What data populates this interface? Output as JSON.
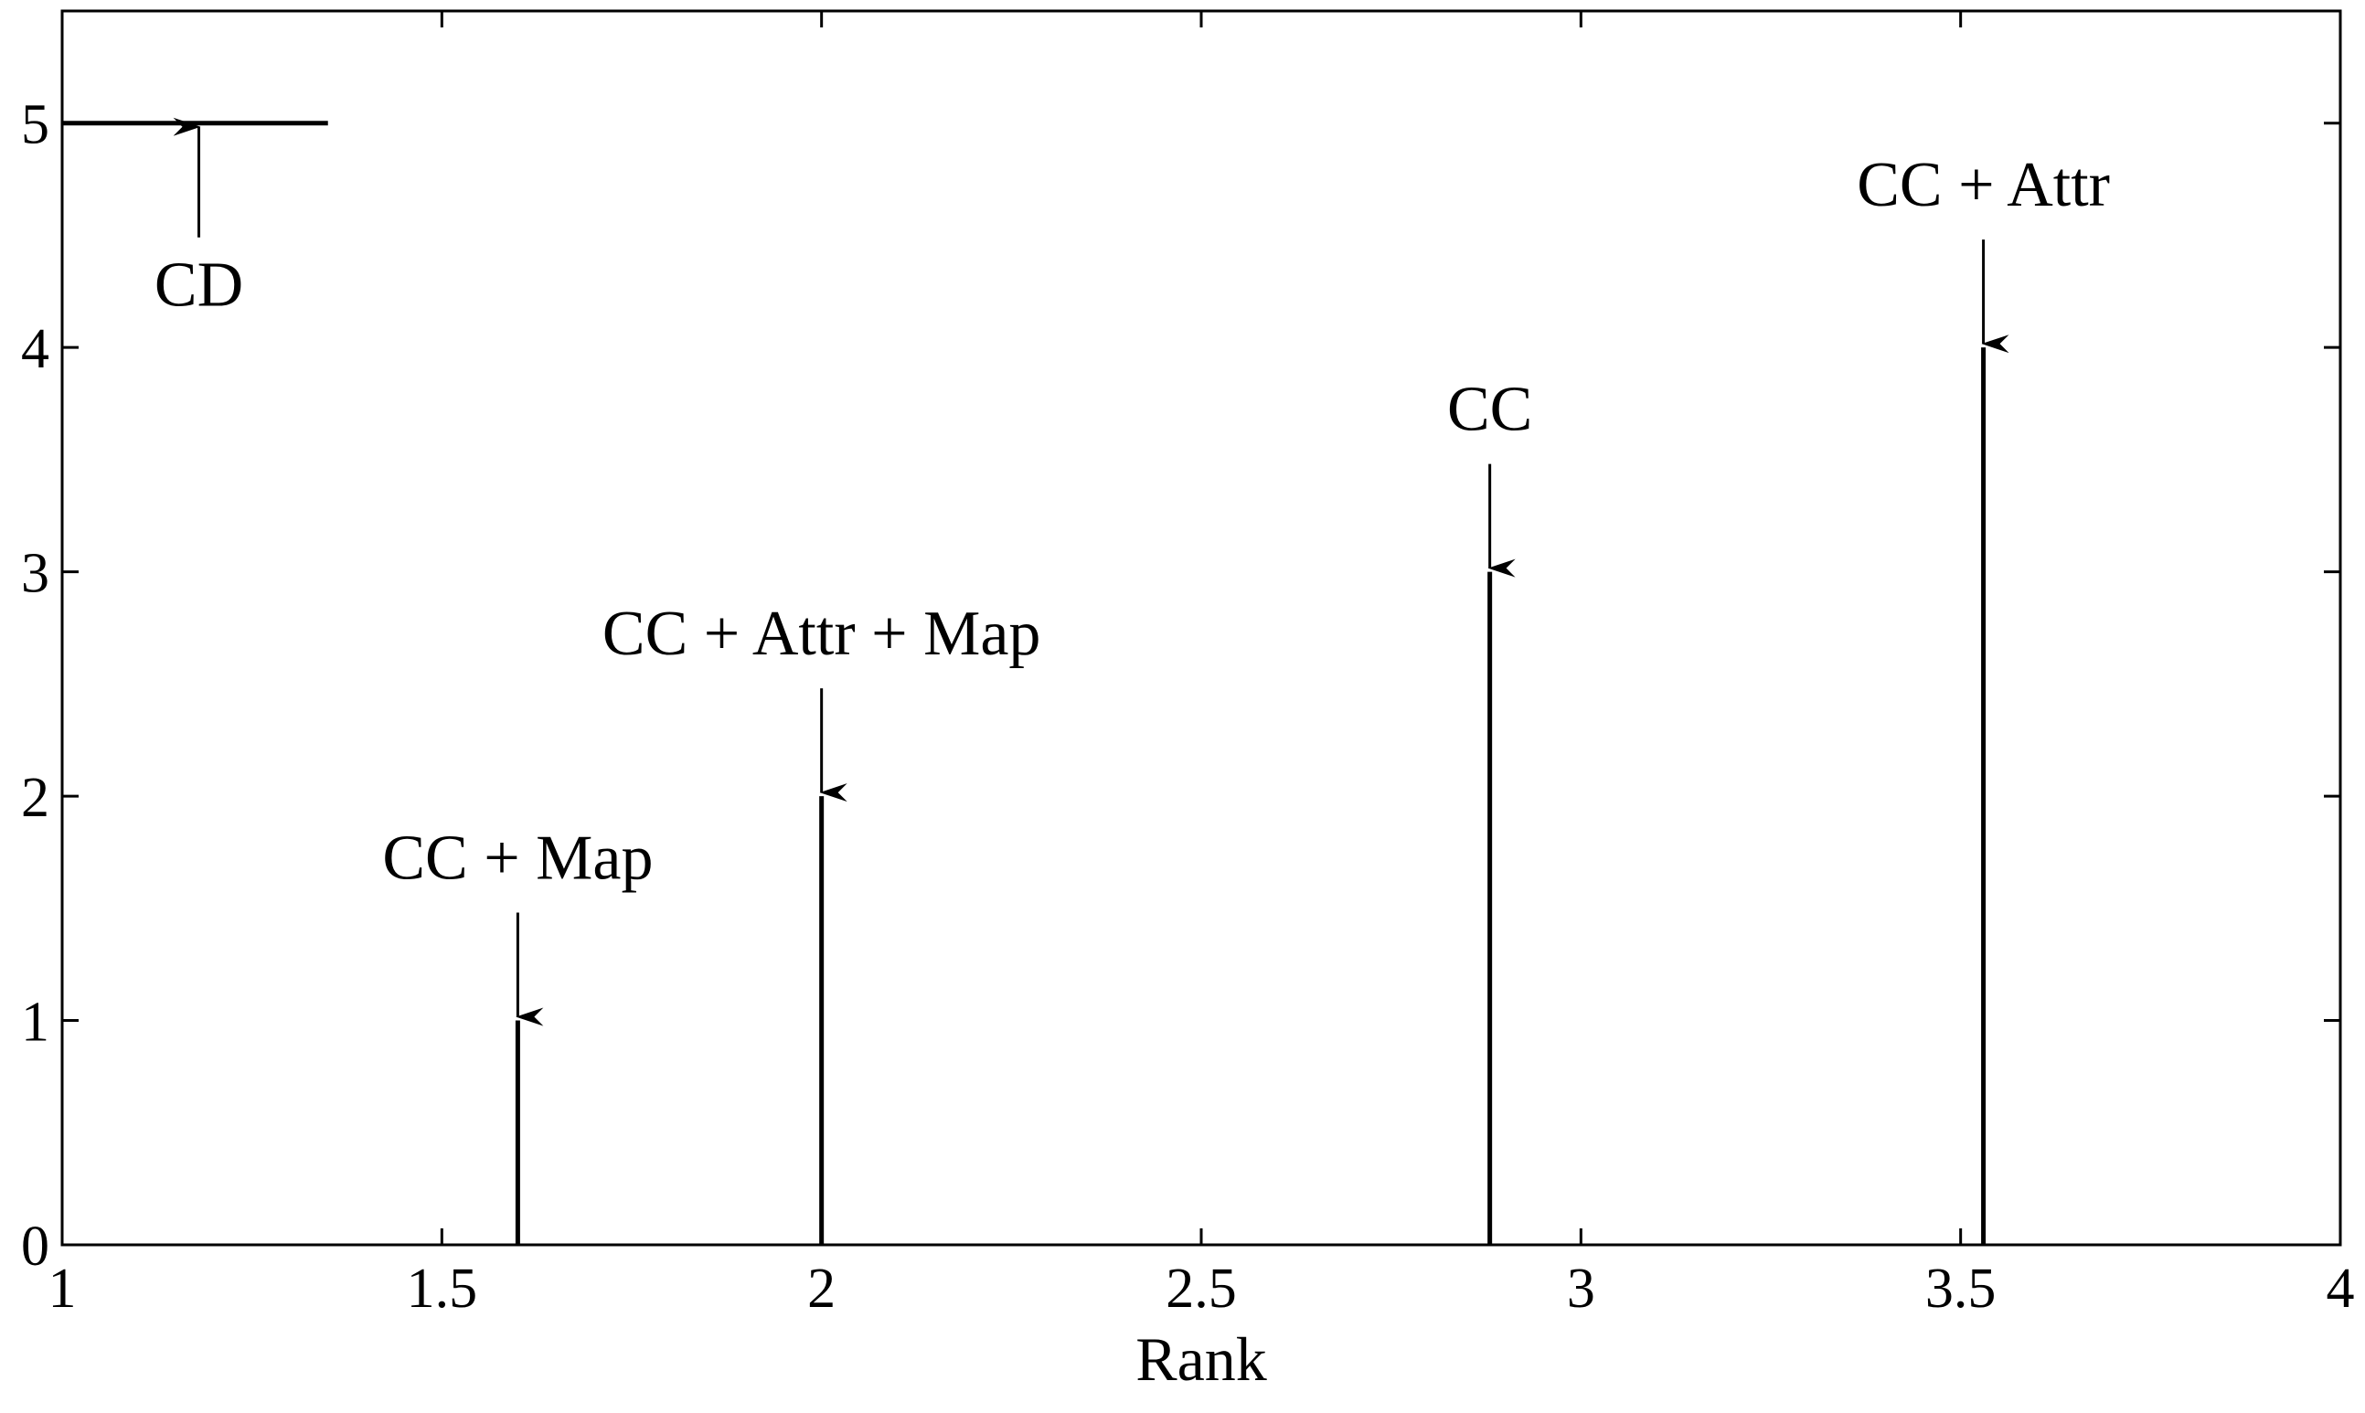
{
  "chart_data": {
    "type": "bar",
    "xlabel": "Rank",
    "ylabel": "",
    "title": "",
    "xlim": [
      1,
      4
    ],
    "ylim": [
      0,
      5.5
    ],
    "xticks": [
      "1",
      "1.5",
      "2",
      "2.5",
      "3",
      "3.5",
      "4"
    ],
    "yticks": [
      "0",
      "1",
      "2",
      "3",
      "4",
      "5"
    ],
    "grid": false,
    "critical_difference": {
      "label": "CD",
      "y": 5,
      "x_start": 1,
      "x_end": 1.35,
      "arrow_x": 1.18
    },
    "series": [
      {
        "label": "CC + Map",
        "rank": 1.6,
        "value": 1
      },
      {
        "label": "CC + Attr + Map",
        "rank": 2.0,
        "value": 2
      },
      {
        "label": "CC",
        "rank": 2.88,
        "value": 3
      },
      {
        "label": "CC + Attr",
        "rank": 3.53,
        "value": 4
      }
    ],
    "colors": {
      "ink": "#000000",
      "background": "#ffffff"
    }
  }
}
